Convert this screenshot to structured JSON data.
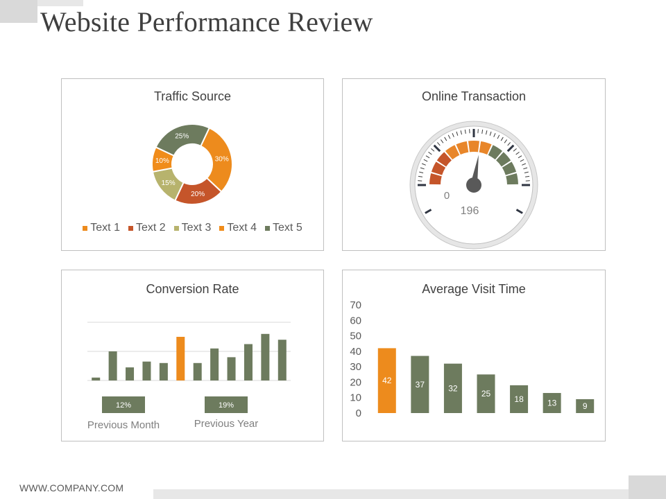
{
  "page": {
    "title": "Website Performance Review"
  },
  "footer": {
    "text": "WWW.COMPANY.COM"
  },
  "colors": {
    "orange": "#ed8b1d",
    "red": "#c5552a",
    "khaki": "#b7b36d",
    "sage": "#6d7b5e",
    "gray_text": "#595959"
  },
  "chart_data": [
    {
      "type": "pie",
      "variant": "donut",
      "title": "Traffic Source",
      "series": [
        {
          "name": "Text 1",
          "value": 30,
          "label": "30%",
          "color": "#ed8b1d"
        },
        {
          "name": "Text 2",
          "value": 20,
          "label": "20%",
          "color": "#c5552a"
        },
        {
          "name": "Text 3",
          "value": 15,
          "label": "15%",
          "color": "#b7b36d"
        },
        {
          "name": "Text 4",
          "value": 10,
          "label": "10%",
          "color": "#f08c1a"
        },
        {
          "name": "Text 5",
          "value": 25,
          "label": "25%",
          "color": "#6d7b5e"
        }
      ],
      "legend": "bottom"
    },
    {
      "type": "gauge",
      "title": "Online Transaction",
      "min_label": "0",
      "value_label": "196",
      "needle_position": 0.55,
      "zones": [
        {
          "segments": 3,
          "color": "#c5552a"
        },
        {
          "segments": 4,
          "color": "#e8862a"
        },
        {
          "segments": 4,
          "color": "#6d7b5e"
        }
      ]
    },
    {
      "type": "bar",
      "title": "Conversion Rate",
      "values": [
        1,
        10,
        4.5,
        6.5,
        6,
        15,
        6,
        11,
        8,
        12.5,
        16,
        14
      ],
      "highlight_index": 5,
      "ylim": [
        0,
        20
      ],
      "grid": true,
      "annotations": [
        {
          "badge": "12%",
          "label": "Previous Month"
        },
        {
          "badge": "19%",
          "label": "Previous Year"
        }
      ]
    },
    {
      "type": "bar",
      "title": "Average Visit Time",
      "values": [
        42,
        37,
        32,
        25,
        18,
        13,
        9
      ],
      "highlight_index": 0,
      "ylim": [
        0,
        70
      ],
      "yticks": [
        0,
        10,
        20,
        30,
        40,
        50,
        60,
        70
      ],
      "grid": false
    }
  ]
}
